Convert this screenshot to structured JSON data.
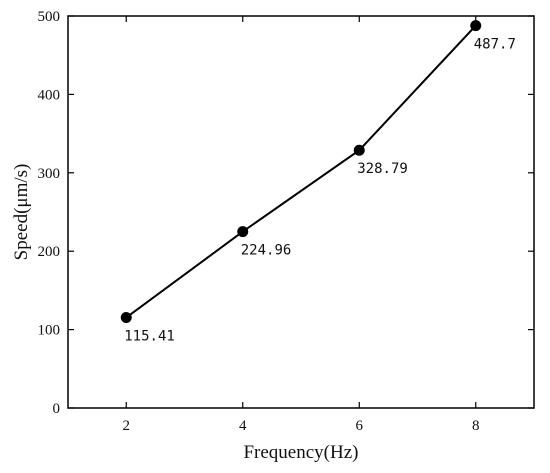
{
  "chart_data": {
    "type": "line",
    "title": "",
    "xlabel": "Frequency(Hz)",
    "ylabel": "Speed(μm/s)",
    "xlim": [
      1,
      9
    ],
    "ylim": [
      0,
      500
    ],
    "xticks": [
      2,
      4,
      6,
      8
    ],
    "yticks": [
      0,
      100,
      200,
      300,
      400,
      500
    ],
    "grid": false,
    "legend": "none",
    "line_color": "#000000",
    "marker": "filled-circle",
    "series": [
      {
        "x": [
          2,
          4,
          6,
          8
        ],
        "y": [
          115.41,
          224.96,
          328.79,
          487.7
        ],
        "labels": [
          "115.41",
          "224.96",
          "328.79",
          "487.7"
        ]
      }
    ]
  }
}
